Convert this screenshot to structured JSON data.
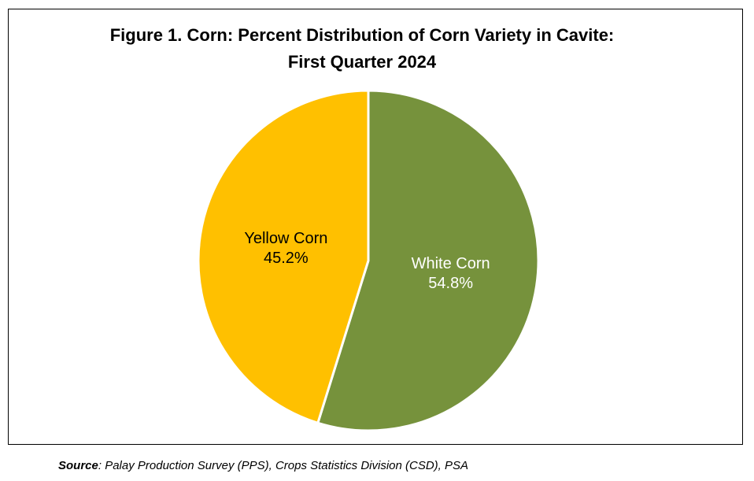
{
  "figure": {
    "title_line1": "Figure 1. Corn: Percent Distribution of Corn Variety in Cavite:",
    "title_line2": "First Quarter 2024"
  },
  "source": {
    "label": "Source",
    "text": ": Palay Production Survey (PPS), Crops Statistics Division (CSD), PSA"
  },
  "chart_data": {
    "type": "pie",
    "title": "Figure 1. Corn: Percent Distribution of Corn Variety in Cavite: First Quarter 2024",
    "slices": [
      {
        "label": "White Corn",
        "value": 54.8,
        "value_label": "54.8%",
        "color": "#76923C",
        "label_color": "#ffffff"
      },
      {
        "label": "Yellow Corn",
        "value": 45.2,
        "value_label": "45.2%",
        "color": "#FFC000",
        "label_color": "#000000"
      }
    ],
    "start": "12 o'clock",
    "direction": "clockwise",
    "slice_border_color": "#ffffff",
    "legend": "none"
  }
}
